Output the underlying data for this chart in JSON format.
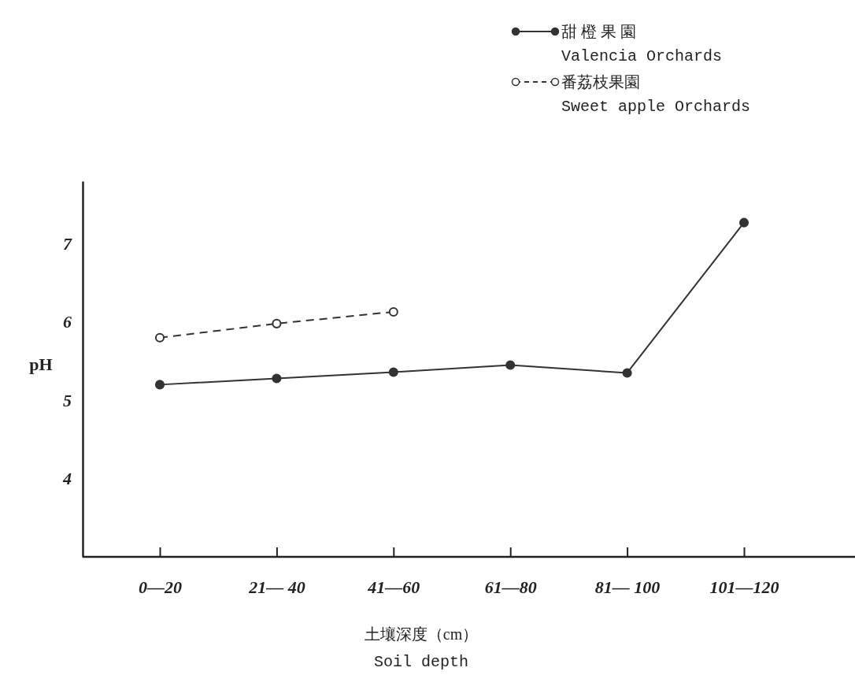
{
  "chart_data": {
    "type": "line",
    "xlabel": "土壤深度（cm）\nSoil depth",
    "ylabel": "pH",
    "categories": [
      "0—20",
      "21— 40",
      "41—60",
      "61—80",
      "81— 100",
      "101—120"
    ],
    "series": [
      {
        "name": "甜 橙 果 園\nValencia Orchards",
        "color": "#333333",
        "values": [
          5.2,
          5.28,
          5.36,
          5.45,
          5.35,
          7.27
        ],
        "line_style": "solid"
      },
      {
        "name": "番荔枝果園\nSweet apple Orchards",
        "color": "#333333",
        "values": [
          5.8,
          5.98,
          6.13,
          null,
          null,
          null
        ],
        "line_style": "dashed"
      }
    ],
    "ylim": [
      3,
      7.8
    ],
    "yticks": [
      4,
      5,
      6,
      7
    ],
    "marker": "circle",
    "legend": "top right",
    "grid": false
  }
}
